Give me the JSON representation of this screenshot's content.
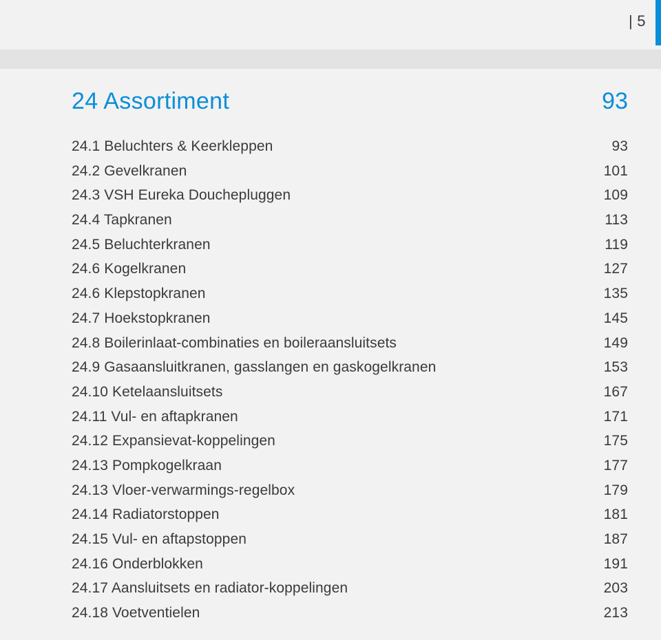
{
  "colors": {
    "accent": "#0b8ed8",
    "body_text": "#3a3a3a",
    "page_bg": "#f2f2f2",
    "band_bg": "#e3e3e3"
  },
  "typography": {
    "heading_fontsize_pt": 26,
    "body_fontsize_pt": 16,
    "page_number_fontsize_pt": 16,
    "weight": 300,
    "family": "Helvetica Neue"
  },
  "page_number": {
    "pipe": "|",
    "number": "5"
  },
  "section": {
    "title": "24 Assortiment",
    "page": "93"
  },
  "toc": [
    {
      "label": "24.1 Beluchters & Keerkleppen",
      "page": "93"
    },
    {
      "label": "24.2 Gevelkranen",
      "page": "101"
    },
    {
      "label": "24.3 VSH Eureka Douchepluggen",
      "page": "109"
    },
    {
      "label": "24.4 Tapkranen",
      "page": "113"
    },
    {
      "label": "24.5 Beluchterkranen",
      "page": "119"
    },
    {
      "label": "24.6 Kogelkranen",
      "page": "127"
    },
    {
      "label": "24.6 Klepstopkranen",
      "page": "135"
    },
    {
      "label": "24.7 Hoekstopkranen",
      "page": "145"
    },
    {
      "label": "24.8 Boilerinlaat-combinaties en boileraansluitsets",
      "page": "149"
    },
    {
      "label": "24.9 Gasaansluitkranen, gasslangen en gaskogelkranen",
      "page": "153"
    },
    {
      "label": "24.10 Ketelaansluitsets",
      "page": "167"
    },
    {
      "label": "24.11 Vul- en aftapkranen",
      "page": "171"
    },
    {
      "label": "24.12 Expansievat-koppelingen",
      "page": "175"
    },
    {
      "label": "24.13 Pompkogelkraan",
      "page": "177"
    },
    {
      "label": "24.13 Vloer-verwarmings-regelbox",
      "page": "179"
    },
    {
      "label": "24.14 Radiatorstoppen",
      "page": "181"
    },
    {
      "label": "24.15 Vul- en aftapstoppen",
      "page": "187"
    },
    {
      "label": "24.16 Onderblokken",
      "page": "191"
    },
    {
      "label": "24.17 Aansluitsets en radiator-koppelingen",
      "page": "203"
    },
    {
      "label": "24.18 Voetventielen",
      "page": "213"
    }
  ]
}
